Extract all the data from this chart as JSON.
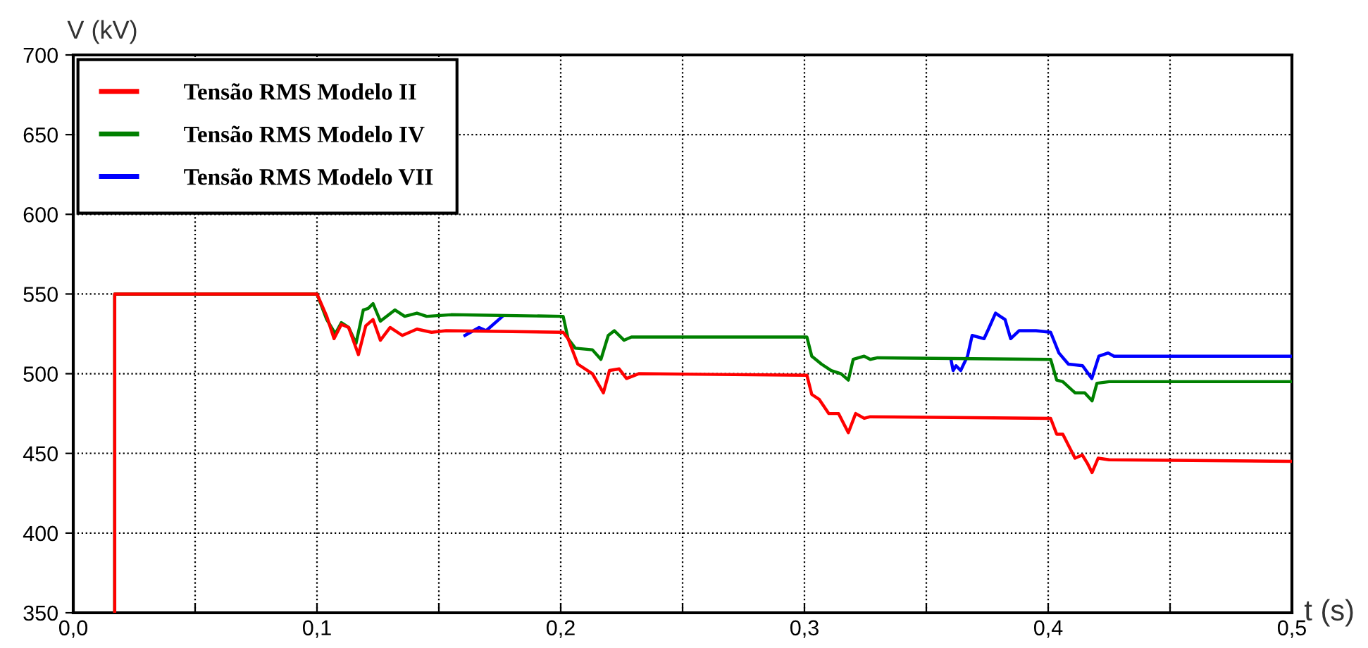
{
  "chart_data": {
    "type": "line",
    "xlabel": "t (s)",
    "ylabel": "V (kV)",
    "xlim": [
      0,
      0.5
    ],
    "ylim": [
      350,
      700
    ],
    "xticks": [
      {
        "value": 0,
        "label": "0,0"
      },
      {
        "value": 0.05,
        "label": null
      },
      {
        "value": 0.1,
        "label": "0,1"
      },
      {
        "value": 0.15,
        "label": null
      },
      {
        "value": 0.2,
        "label": "0,2"
      },
      {
        "value": 0.25,
        "label": null
      },
      {
        "value": 0.3,
        "label": "0,3"
      },
      {
        "value": 0.35,
        "label": null
      },
      {
        "value": 0.4,
        "label": "0,4"
      },
      {
        "value": 0.45,
        "label": null
      },
      {
        "value": 0.5,
        "label": "0,5"
      }
    ],
    "yticks": [
      350,
      400,
      450,
      500,
      550,
      600,
      650,
      700
    ],
    "grid": true,
    "legend": "top left",
    "line_style": "solid",
    "marker": "none",
    "series": [
      {
        "name": "Tensão RMS Modelo II",
        "color": "#ff0000",
        "x": [
          0.017,
          0.017,
          0.1,
          0.104,
          0.107,
          0.11,
          0.113,
          0.117,
          0.12,
          0.123,
          0.126,
          0.13,
          0.135,
          0.141,
          0.147,
          0.153,
          0.201,
          0.203,
          0.207,
          0.213,
          0.2175,
          0.22,
          0.224,
          0.227,
          0.232,
          0.301,
          0.303,
          0.306,
          0.31,
          0.314,
          0.318,
          0.321,
          0.3245,
          0.327,
          0.401,
          0.4035,
          0.406,
          0.411,
          0.414,
          0.416,
          0.418,
          0.4205,
          0.425,
          0.5
        ],
        "values": [
          350,
          550,
          550,
          536,
          522,
          531,
          529,
          512,
          530,
          534,
          521,
          529,
          524,
          528,
          526,
          527,
          526,
          522,
          506,
          500,
          488,
          502,
          503,
          497,
          500,
          499,
          487,
          484,
          475,
          475,
          463,
          475,
          472,
          473,
          472,
          462,
          462,
          447,
          449,
          444,
          438,
          447,
          446,
          445
        ]
      },
      {
        "name": "Tensão RMS Modelo IV",
        "color": "#008000",
        "x": [
          0.017,
          0.017,
          0.1,
          0.104,
          0.1075,
          0.11,
          0.113,
          0.116,
          0.119,
          0.121,
          0.123,
          0.126,
          0.132,
          0.136,
          0.141,
          0.145,
          0.155,
          0.201,
          0.203,
          0.206,
          0.213,
          0.2165,
          0.2195,
          0.222,
          0.226,
          0.229,
          0.301,
          0.303,
          0.307,
          0.311,
          0.315,
          0.318,
          0.32,
          0.3245,
          0.327,
          0.33,
          0.401,
          0.4035,
          0.406,
          0.411,
          0.415,
          0.418,
          0.42,
          0.425,
          0.5
        ],
        "values": [
          350,
          550,
          550,
          534,
          525,
          532,
          529,
          519,
          540,
          541,
          544,
          533,
          540,
          536,
          538,
          536,
          537,
          536,
          522,
          516,
          515,
          509,
          524,
          527,
          521,
          523,
          523,
          511,
          506,
          502,
          500,
          496,
          509,
          511,
          509,
          510,
          509,
          496,
          495,
          488,
          488,
          483,
          494,
          495,
          495
        ]
      },
      {
        "name": "Tensão RMS Modelo VII",
        "color": "#0000ff",
        "x": [
          0.1607,
          0.1665,
          0.1694,
          0.1761,
          0.2,
          0.3601,
          0.361,
          0.3622,
          0.3641,
          0.3669,
          0.3688,
          0.3737,
          0.3755,
          0.3784,
          0.3803,
          0.3823,
          0.3846,
          0.3881,
          0.395,
          0.401,
          0.4044,
          0.4083,
          0.4141,
          0.4179,
          0.4208,
          0.4246,
          0.427,
          0.5
        ],
        "values": [
          524,
          529,
          527,
          536,
          null,
          509,
          502,
          505,
          502,
          511,
          524,
          522,
          528,
          538,
          536,
          534,
          522,
          527,
          527,
          526,
          513,
          506,
          505,
          497,
          511,
          513,
          511,
          511
        ]
      }
    ]
  }
}
